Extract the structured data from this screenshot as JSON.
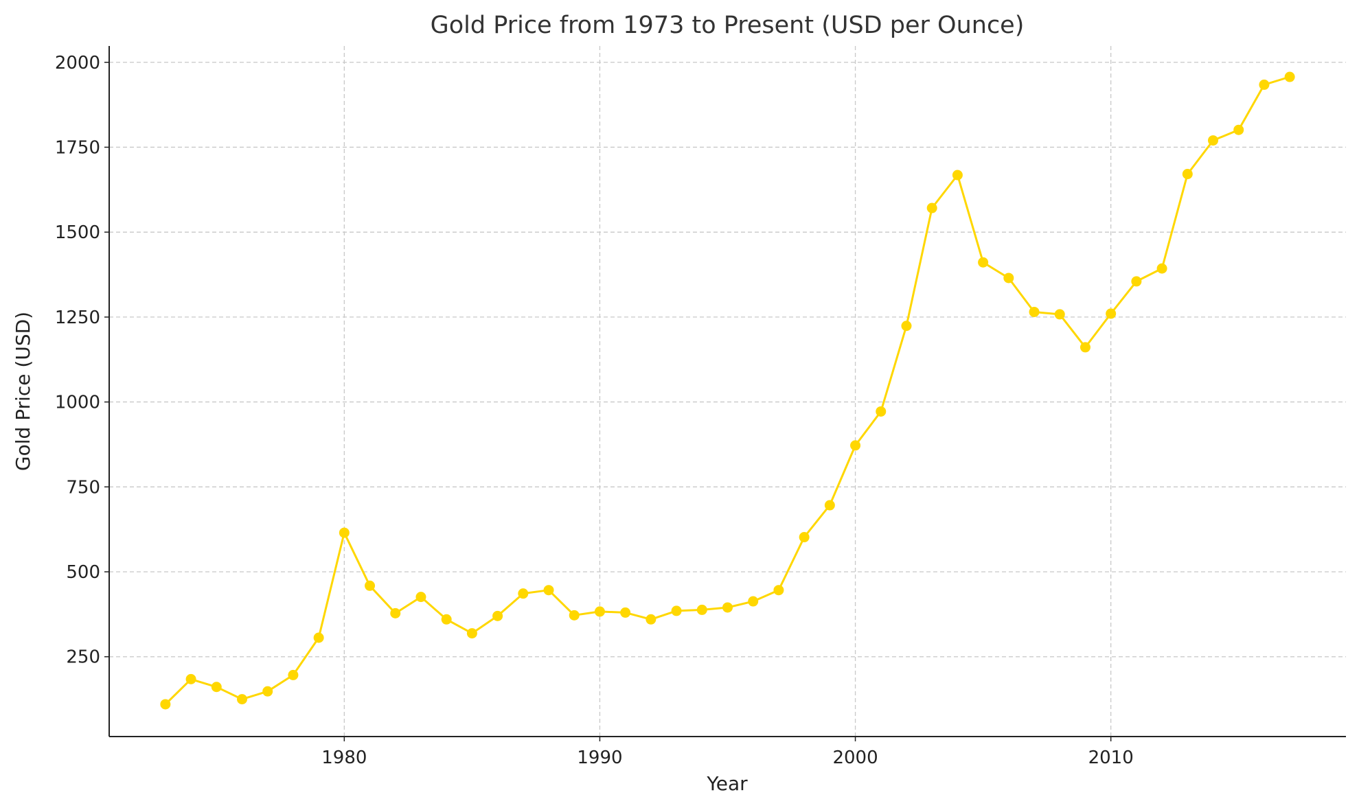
{
  "chart_data": {
    "type": "line",
    "title": "Gold Price from 1973 to Present (USD per Ounce)",
    "xlabel": "Year",
    "ylabel": "Gold Price (USD)",
    "xlim": [
      1970.8,
      2019.2
    ],
    "ylim": [
      15,
      2048
    ],
    "xticks": [
      1980,
      1990,
      2000,
      2010
    ],
    "yticks": [
      250,
      500,
      750,
      1000,
      1250,
      1500,
      1750,
      2000
    ],
    "grid": true,
    "color": "#FFD700",
    "marker": "circle",
    "x": [
      1973,
      1974,
      1975,
      1976,
      1977,
      1978,
      1979,
      1980,
      1981,
      1982,
      1983,
      1984,
      1985,
      1986,
      1987,
      1988,
      1989,
      1990,
      1991,
      1992,
      1993,
      1994,
      1995,
      1996,
      1997,
      1998,
      1999,
      2000,
      2001,
      2002,
      2003,
      2004,
      2005,
      2006,
      2007,
      2008,
      2009,
      2010,
      2011,
      2012,
      2013,
      2014,
      2015,
      2016,
      2017
    ],
    "y": [
      110,
      184,
      161,
      125,
      148,
      196,
      306,
      615,
      459,
      378,
      426,
      360,
      319,
      370,
      436,
      446,
      372,
      383,
      380,
      360,
      385,
      388,
      395,
      413,
      446,
      602,
      696,
      872,
      972,
      1224,
      1571,
      1668,
      1411,
      1365,
      1265,
      1258,
      1161,
      1260,
      1355,
      1393,
      1671,
      1770,
      1801,
      1934,
      1957
    ]
  }
}
